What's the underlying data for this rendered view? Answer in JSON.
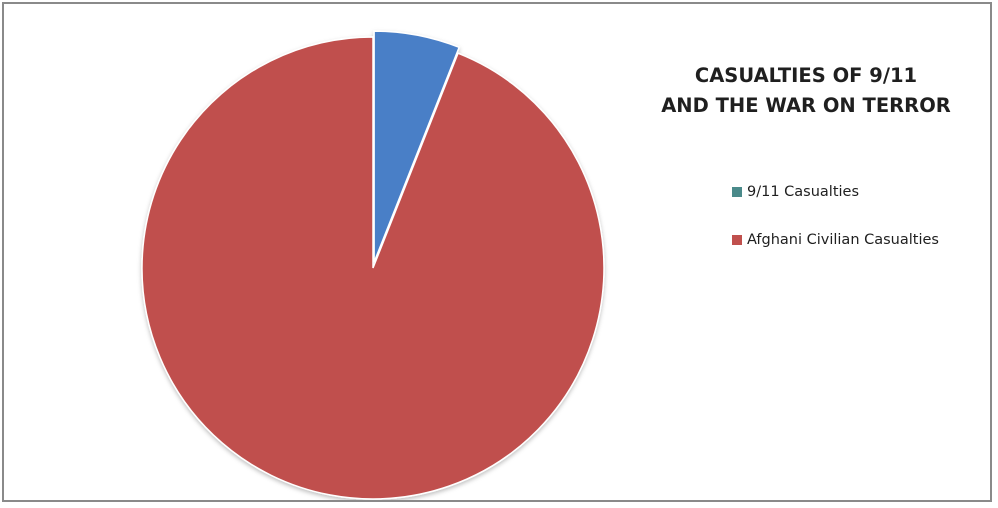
{
  "chart_data": {
    "type": "pie",
    "title_lines": [
      "CASUALTIES OF 9/11",
      "AND THE WAR ON TERROR"
    ],
    "categories": [
      "9/11 Casualties",
      "Afghani Civilian Casualties"
    ],
    "values": [
      6,
      94
    ],
    "colors": [
      "#4a7fc7",
      "#c0504d"
    ],
    "legend_swatch_colors": [
      "#4a8a8a",
      "#c0504d"
    ],
    "legend_position": "right"
  }
}
